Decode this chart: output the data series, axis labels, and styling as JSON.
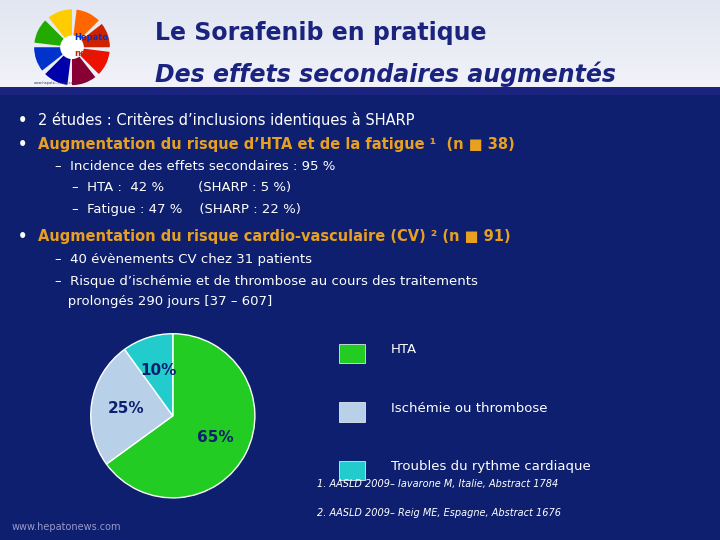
{
  "title_line1": "Le Sorafenib en pratique",
  "title_line2": "Des effets secondaires augmentés",
  "bg_color": "#0d1f6e",
  "header_bg_top": "#e8eaf5",
  "header_bg_bottom": "#c8cce8",
  "title_color": "#1a237e",
  "bullet_white": "#ffffff",
  "bullet_orange": "#e8a020",
  "bullet1": "2 études : Critères d’inclusions identiques à SHARP",
  "bullet2": "Augmentation du risque d’HTA et de la fatigue ¹  (n ■ 38)",
  "sub1": "–  Incidence des effets secondaires : 95 %",
  "sub2": "–  HTA :  42 %        (SHARP : 5 %)",
  "sub3": "–  Fatigue : 47 %    (SHARP : 22 %)",
  "bullet3": "Augmentation du risque cardio-vasculaire (CV) ² (n ■ 91)",
  "sub4": "–  40 évènements CV chez 31 patients",
  "sub5": "–  Risque d’ischémie et de thrombose au cours des traitements",
  "sub6": "   prolongés 290 jours [37 – 607]",
  "pie_values": [
    65,
    25,
    10
  ],
  "pie_colors": [
    "#22cc22",
    "#b8d0e8",
    "#22cccc"
  ],
  "pie_labels": [
    "65%",
    "25%",
    "10%"
  ],
  "pie_label_colors": [
    "#0d1f6e",
    "#0d1f6e",
    "#0d1f6e"
  ],
  "legend_labels": [
    "HTA",
    "Ischémie ou thrombose",
    "Troubles du rythme cardiaque"
  ],
  "legend_colors": [
    "#22cc22",
    "#b8d0e8",
    "#22cccc"
  ],
  "footnote1": "1. AASLD 2009– Iavarone M, Italie, Abstract 1784",
  "footnote2": "2. AASLD 2009– Reig ME, Espagne, Abstract 1676",
  "footer": "www.hepatonews.com",
  "logo_colors": [
    "#cc2200",
    "#ee6600",
    "#22aa00",
    "#0033cc",
    "#cc2200",
    "#ffcc00",
    "#22aa00",
    "#0033cc"
  ]
}
